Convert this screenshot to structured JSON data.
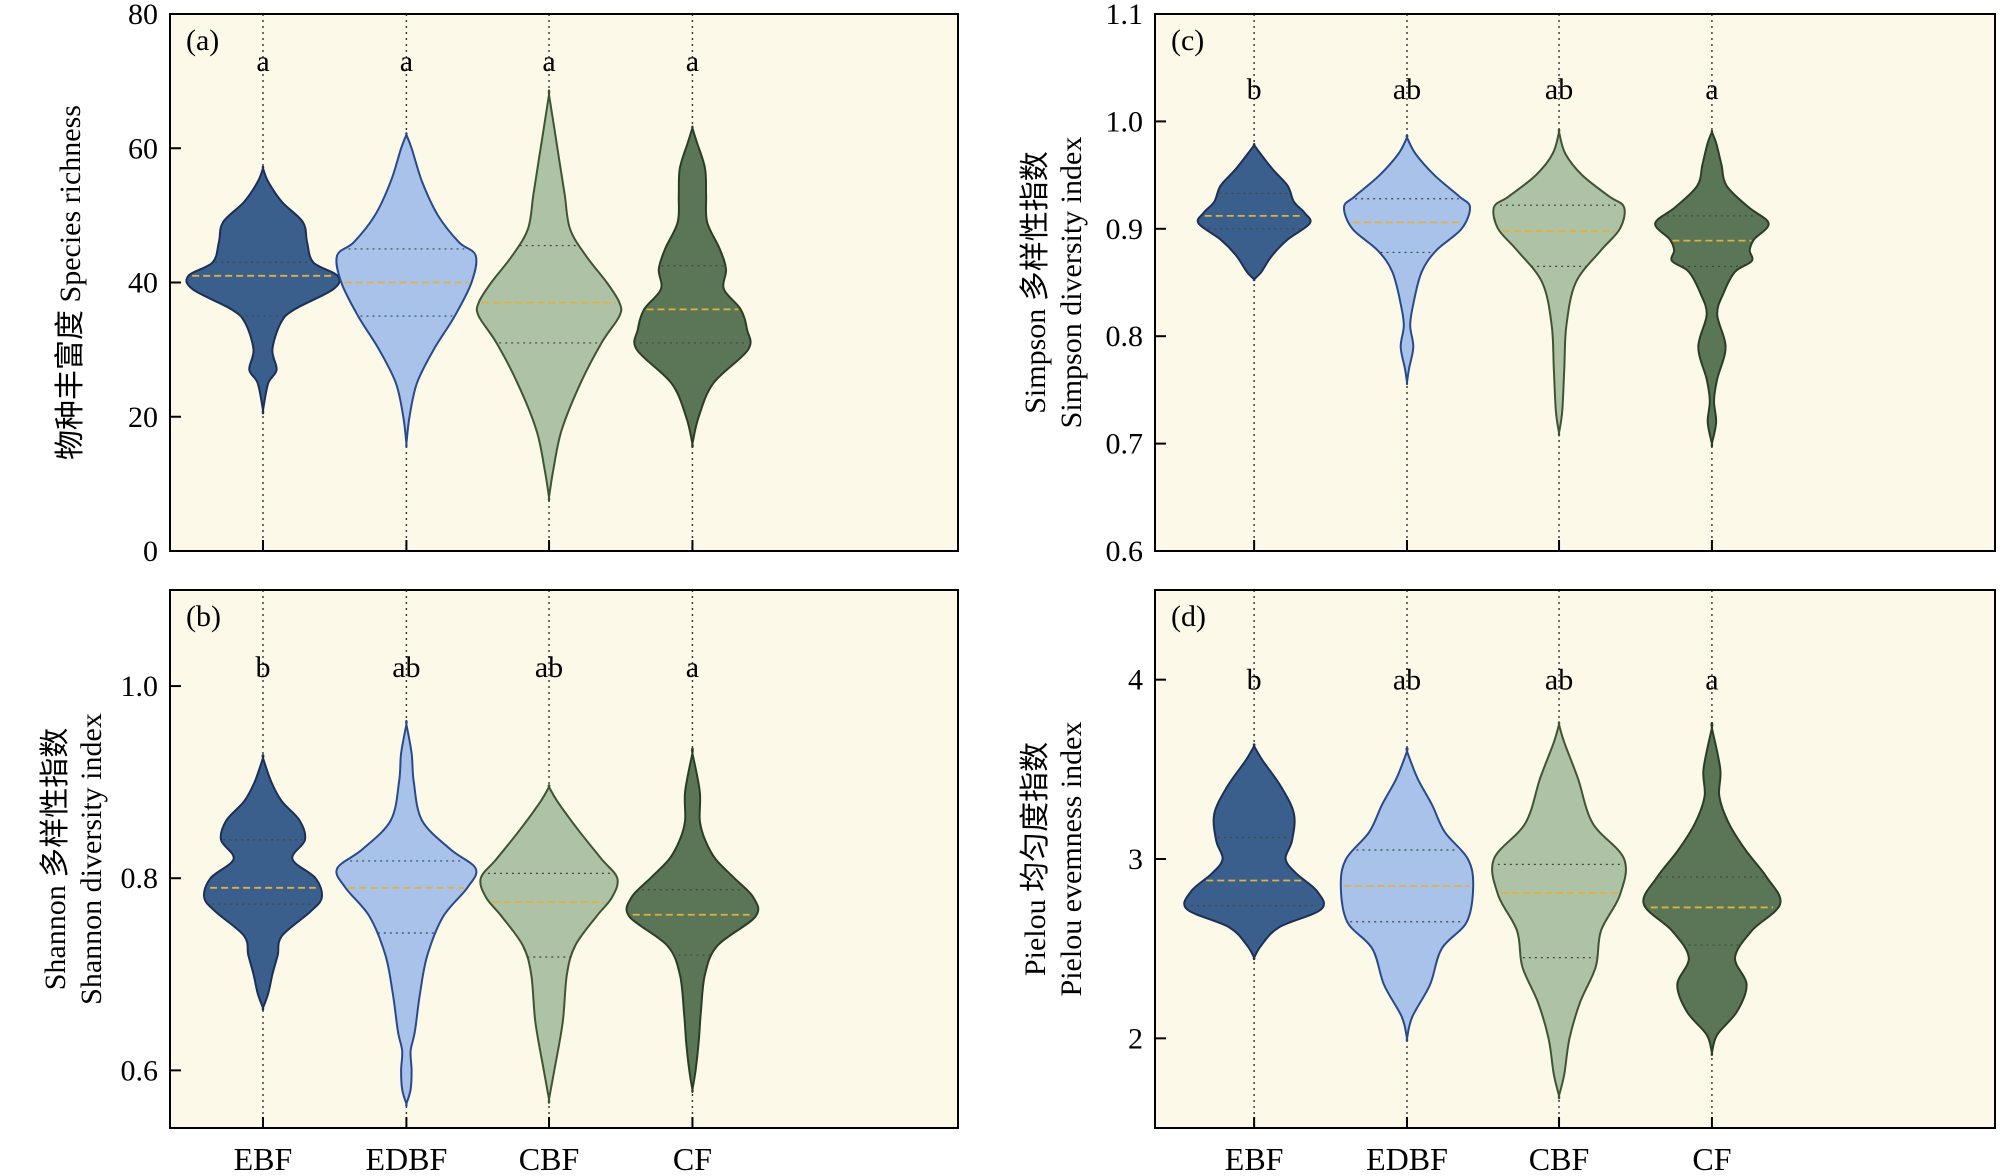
{
  "colors": {
    "background": "#fcf9e8",
    "EBF": "#3a5f8c",
    "EBF_edge": "#1c2f55",
    "EDBF": "#a8c2ea",
    "EDBF_edge": "#284a8a",
    "CBF": "#aec2a6",
    "CBF_edge": "#3e5534",
    "CF": "#5a7656",
    "CF_edge": "#2a3d28",
    "median": "#e0b040"
  },
  "chart_data": [
    {
      "type": "violin",
      "panel_label": "(a)",
      "position": "top-left",
      "ylabel": "物种丰富度 Species richness",
      "ylim": [
        0,
        80
      ],
      "yticks": [
        0,
        20,
        40,
        60,
        80
      ],
      "ytick_labels": [
        "0",
        "20",
        "40",
        "60",
        "80"
      ],
      "categories": [
        "EBF",
        "EDBF",
        "CBF",
        "CF"
      ],
      "letters": [
        "a",
        "a",
        "a",
        "a"
      ],
      "letter_y": 73,
      "series": [
        {
          "name": "EBF",
          "median": 41,
          "q1": 35,
          "q3": 43,
          "profile": [
            [
              21,
              0
            ],
            [
              25,
              0.05
            ],
            [
              27,
              0.13
            ],
            [
              30,
              0.09
            ],
            [
              34,
              0.17
            ],
            [
              36,
              0.3
            ],
            [
              39,
              0.67
            ],
            [
              41,
              0.71
            ],
            [
              43,
              0.48
            ],
            [
              46,
              0.42
            ],
            [
              49,
              0.38
            ],
            [
              52,
              0.18
            ],
            [
              55,
              0.05
            ],
            [
              57,
              0
            ]
          ]
        },
        {
          "name": "EDBF",
          "median": 40,
          "q1": 35,
          "q3": 45,
          "profile": [
            [
              16,
              0
            ],
            [
              20,
              0.03
            ],
            [
              25,
              0.1
            ],
            [
              30,
              0.26
            ],
            [
              35,
              0.46
            ],
            [
              40,
              0.62
            ],
            [
              44,
              0.66
            ],
            [
              46,
              0.5
            ],
            [
              50,
              0.3
            ],
            [
              55,
              0.15
            ],
            [
              60,
              0.05
            ],
            [
              62,
              0
            ]
          ]
        },
        {
          "name": "CBF",
          "median": 37,
          "q1": 31,
          "q3": 45.5,
          "profile": [
            [
              8,
              0
            ],
            [
              12,
              0.04
            ],
            [
              18,
              0.12
            ],
            [
              25,
              0.3
            ],
            [
              31,
              0.5
            ],
            [
              35,
              0.67
            ],
            [
              37,
              0.67
            ],
            [
              40,
              0.55
            ],
            [
              44,
              0.35
            ],
            [
              48,
              0.2
            ],
            [
              53,
              0.15
            ],
            [
              58,
              0.1
            ],
            [
              63,
              0.05
            ],
            [
              68,
              0
            ]
          ]
        },
        {
          "name": "CF",
          "median": 36,
          "q1": 31,
          "q3": 42.5,
          "profile": [
            [
              16,
              0
            ],
            [
              20,
              0.06
            ],
            [
              25,
              0.2
            ],
            [
              30,
              0.53
            ],
            [
              33,
              0.52
            ],
            [
              36,
              0.46
            ],
            [
              39,
              0.3
            ],
            [
              42,
              0.32
            ],
            [
              45,
              0.26
            ],
            [
              49,
              0.14
            ],
            [
              53,
              0.13
            ],
            [
              57,
              0.12
            ],
            [
              61,
              0.04
            ],
            [
              63,
              0
            ]
          ]
        }
      ]
    },
    {
      "type": "violin",
      "panel_label": "(b)",
      "position": "bottom-left",
      "ylabel": [
        "Shannon 多样性指数",
        "Shannon diversity index"
      ],
      "ylim": [
        0.54,
        1.1
      ],
      "yticks": [
        0.6,
        0.8,
        1.0
      ],
      "ytick_labels": [
        "0.6",
        "0.8",
        "1.0"
      ],
      "categories": [
        "EBF",
        "EDBF",
        "CBF",
        "CF"
      ],
      "letters": [
        "b",
        "ab",
        "ab",
        "a"
      ],
      "letter_y": 1.02,
      "series": [
        {
          "name": "EBF",
          "median": 0.79,
          "q1": 0.773,
          "q3": 0.84,
          "profile": [
            [
              0.665,
              0
            ],
            [
              0.68,
              0.05
            ],
            [
              0.7,
              0.09
            ],
            [
              0.72,
              0.14
            ],
            [
              0.74,
              0.18
            ],
            [
              0.765,
              0.45
            ],
            [
              0.78,
              0.56
            ],
            [
              0.8,
              0.5
            ],
            [
              0.82,
              0.28
            ],
            [
              0.84,
              0.4
            ],
            [
              0.86,
              0.35
            ],
            [
              0.88,
              0.18
            ],
            [
              0.9,
              0.08
            ],
            [
              0.925,
              0
            ]
          ]
        },
        {
          "name": "EDBF",
          "median": 0.79,
          "q1": 0.743,
          "q3": 0.818,
          "profile": [
            [
              0.565,
              0
            ],
            [
              0.58,
              0.04
            ],
            [
              0.6,
              0.05
            ],
            [
              0.62,
              0.04
            ],
            [
              0.64,
              0.08
            ],
            [
              0.68,
              0.13
            ],
            [
              0.72,
              0.2
            ],
            [
              0.76,
              0.35
            ],
            [
              0.79,
              0.58
            ],
            [
              0.81,
              0.66
            ],
            [
              0.83,
              0.42
            ],
            [
              0.86,
              0.15
            ],
            [
              0.9,
              0.07
            ],
            [
              0.93,
              0.05
            ],
            [
              0.96,
              0
            ]
          ]
        },
        {
          "name": "CBF",
          "median": 0.775,
          "q1": 0.718,
          "q3": 0.805,
          "profile": [
            [
              0.57,
              0
            ],
            [
              0.6,
              0.05
            ],
            [
              0.65,
              0.13
            ],
            [
              0.7,
              0.17
            ],
            [
              0.73,
              0.25
            ],
            [
              0.76,
              0.45
            ],
            [
              0.78,
              0.6
            ],
            [
              0.8,
              0.65
            ],
            [
              0.82,
              0.5
            ],
            [
              0.85,
              0.28
            ],
            [
              0.88,
              0.08
            ],
            [
              0.895,
              0
            ]
          ]
        },
        {
          "name": "CF",
          "median": 0.762,
          "q1": 0.72,
          "q3": 0.788,
          "profile": [
            [
              0.58,
              0
            ],
            [
              0.6,
              0.03
            ],
            [
              0.63,
              0.06
            ],
            [
              0.66,
              0.08
            ],
            [
              0.7,
              0.12
            ],
            [
              0.73,
              0.24
            ],
            [
              0.76,
              0.6
            ],
            [
              0.78,
              0.58
            ],
            [
              0.8,
              0.4
            ],
            [
              0.82,
              0.22
            ],
            [
              0.84,
              0.12
            ],
            [
              0.86,
              0.07
            ],
            [
              0.89,
              0.07
            ],
            [
              0.93,
              0
            ]
          ]
        }
      ]
    },
    {
      "type": "violin",
      "panel_label": "(c)",
      "position": "top-right",
      "ylabel": [
        "Simpson 多样性指数",
        "Simpson diversity index"
      ],
      "ylim": [
        0.6,
        1.1
      ],
      "yticks": [
        0.6,
        0.7,
        0.8,
        0.9,
        1.0,
        1.1
      ],
      "ytick_labels": [
        "0.6",
        "0.7",
        "0.8",
        "0.9",
        "1.0",
        "1.1"
      ],
      "categories": [
        "EBF",
        "EDBF",
        "CBF",
        "CF"
      ],
      "letters": [
        "b",
        "ab",
        "ab",
        "a"
      ],
      "letter_y": 1.03,
      "series": [
        {
          "name": "EBF",
          "median": 0.912,
          "q1": 0.9,
          "q3": 0.933,
          "profile": [
            [
              0.853,
              0
            ],
            [
              0.86,
              0.07
            ],
            [
              0.875,
              0.17
            ],
            [
              0.89,
              0.32
            ],
            [
              0.905,
              0.53
            ],
            [
              0.915,
              0.48
            ],
            [
              0.925,
              0.38
            ],
            [
              0.94,
              0.32
            ],
            [
              0.955,
              0.18
            ],
            [
              0.97,
              0.06
            ],
            [
              0.978,
              0
            ]
          ]
        },
        {
          "name": "EDBF",
          "median": 0.906,
          "q1": 0.878,
          "q3": 0.928,
          "profile": [
            [
              0.757,
              0
            ],
            [
              0.77,
              0.02
            ],
            [
              0.79,
              0.06
            ],
            [
              0.81,
              0.03
            ],
            [
              0.83,
              0.06
            ],
            [
              0.86,
              0.14
            ],
            [
              0.88,
              0.28
            ],
            [
              0.9,
              0.52
            ],
            [
              0.92,
              0.6
            ],
            [
              0.93,
              0.5
            ],
            [
              0.95,
              0.26
            ],
            [
              0.97,
              0.08
            ],
            [
              0.985,
              0
            ]
          ]
        },
        {
          "name": "CBF",
          "median": 0.898,
          "q1": 0.865,
          "q3": 0.922,
          "profile": [
            [
              0.71,
              0
            ],
            [
              0.73,
              0.03
            ],
            [
              0.77,
              0.05
            ],
            [
              0.81,
              0.07
            ],
            [
              0.85,
              0.16
            ],
            [
              0.88,
              0.4
            ],
            [
              0.9,
              0.58
            ],
            [
              0.92,
              0.62
            ],
            [
              0.93,
              0.48
            ],
            [
              0.95,
              0.22
            ],
            [
              0.97,
              0.06
            ],
            [
              0.99,
              0
            ]
          ]
        },
        {
          "name": "CF",
          "median": 0.889,
          "q1": 0.865,
          "q3": 0.912,
          "profile": [
            [
              0.7,
              0
            ],
            [
              0.72,
              0.04
            ],
            [
              0.74,
              0.02
            ],
            [
              0.76,
              0.05
            ],
            [
              0.79,
              0.13
            ],
            [
              0.82,
              0.05
            ],
            [
              0.84,
              0.11
            ],
            [
              0.86,
              0.22
            ],
            [
              0.87,
              0.38
            ],
            [
              0.88,
              0.36
            ],
            [
              0.89,
              0.4
            ],
            [
              0.905,
              0.54
            ],
            [
              0.92,
              0.35
            ],
            [
              0.94,
              0.14
            ],
            [
              0.96,
              0.09
            ],
            [
              0.98,
              0.04
            ],
            [
              0.99,
              0
            ]
          ]
        }
      ]
    },
    {
      "type": "violin",
      "panel_label": "(d)",
      "position": "bottom-right",
      "ylabel": [
        "Pielou 均匀度指数",
        "Pielou evemness index"
      ],
      "ylim": [
        1.5,
        4.5
      ],
      "yticks": [
        2,
        3,
        4
      ],
      "ytick_labels": [
        "2",
        "3",
        "4"
      ],
      "categories": [
        "EBF",
        "EDBF",
        "CBF",
        "CF"
      ],
      "letters": [
        "b",
        "ab",
        "ab",
        "a"
      ],
      "letter_y": 4.0,
      "series": [
        {
          "name": "EBF",
          "median": 2.88,
          "q1": 2.74,
          "q3": 3.12,
          "profile": [
            [
              2.45,
              0
            ],
            [
              2.52,
              0.07
            ],
            [
              2.62,
              0.24
            ],
            [
              2.72,
              0.64
            ],
            [
              2.82,
              0.6
            ],
            [
              2.92,
              0.4
            ],
            [
              3.0,
              0.3
            ],
            [
              3.1,
              0.36
            ],
            [
              3.25,
              0.38
            ],
            [
              3.4,
              0.26
            ],
            [
              3.55,
              0.08
            ],
            [
              3.63,
              0
            ]
          ]
        },
        {
          "name": "EDBF",
          "median": 2.85,
          "q1": 2.65,
          "q3": 3.05,
          "profile": [
            [
              2.0,
              0
            ],
            [
              2.12,
              0.05
            ],
            [
              2.3,
              0.22
            ],
            [
              2.5,
              0.33
            ],
            [
              2.65,
              0.57
            ],
            [
              2.85,
              0.63
            ],
            [
              3.0,
              0.58
            ],
            [
              3.15,
              0.36
            ],
            [
              3.3,
              0.24
            ],
            [
              3.45,
              0.1
            ],
            [
              3.6,
              0
            ]
          ]
        },
        {
          "name": "CBF",
          "median": 2.81,
          "q1": 2.45,
          "q3": 2.97,
          "profile": [
            [
              1.68,
              0
            ],
            [
              1.8,
              0.05
            ],
            [
              2.0,
              0.1
            ],
            [
              2.2,
              0.2
            ],
            [
              2.4,
              0.35
            ],
            [
              2.6,
              0.4
            ],
            [
              2.8,
              0.58
            ],
            [
              3.0,
              0.62
            ],
            [
              3.2,
              0.32
            ],
            [
              3.45,
              0.18
            ],
            [
              3.65,
              0.05
            ],
            [
              3.75,
              0
            ]
          ]
        },
        {
          "name": "CF",
          "median": 2.73,
          "q1": 2.52,
          "q3": 2.9,
          "profile": [
            [
              1.92,
              0
            ],
            [
              2.02,
              0.05
            ],
            [
              2.15,
              0.24
            ],
            [
              2.3,
              0.33
            ],
            [
              2.45,
              0.22
            ],
            [
              2.6,
              0.38
            ],
            [
              2.75,
              0.65
            ],
            [
              2.9,
              0.52
            ],
            [
              3.05,
              0.32
            ],
            [
              3.2,
              0.16
            ],
            [
              3.35,
              0.07
            ],
            [
              3.5,
              0.08
            ],
            [
              3.73,
              0
            ]
          ]
        }
      ]
    }
  ]
}
